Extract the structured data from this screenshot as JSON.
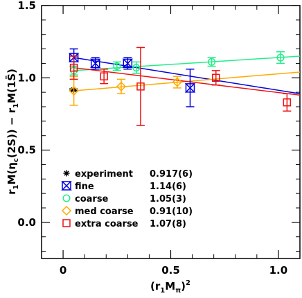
{
  "chart_data": {
    "type": "scatter",
    "xlabel": "(r1Mπ)²",
    "ylabel": "r1M(ηc(2S)) − r1M(1S̄)",
    "xlim": [
      -0.1,
      1.1
    ],
    "ylim": [
      -0.25,
      1.5
    ],
    "x_ticks": [
      "0",
      "0.5",
      "1.0"
    ],
    "y_ticks": [
      "0.0",
      "0.5",
      "1.0",
      "1.5"
    ],
    "grid": false,
    "legend_position": "bottom-left",
    "series": [
      {
        "name": "experiment",
        "value": "0.917(6)",
        "color": "#000000",
        "marker": "star",
        "points": [
          {
            "x": 0.048,
            "y": 0.917,
            "err": 0.006
          }
        ],
        "fit": null
      },
      {
        "name": "fine",
        "value": "1.14(6)",
        "color": "#0000dd",
        "marker": "bowtie",
        "points": [
          {
            "x": 0.05,
            "y": 1.14,
            "err": 0.06
          },
          {
            "x": 0.15,
            "y": 1.1,
            "err": 0.04
          },
          {
            "x": 0.3,
            "y": 1.1,
            "err": 0.04
          },
          {
            "x": 0.59,
            "y": 0.93,
            "err": 0.13
          }
        ],
        "fit": {
          "y0": 1.14,
          "x1": 1.1,
          "y1": 0.89
        }
      },
      {
        "name": "coarse",
        "value": "1.05(3)",
        "color": "#22ee88",
        "marker": "circle",
        "points": [
          {
            "x": 0.05,
            "y": 1.05,
            "err": 0.03
          },
          {
            "x": 0.25,
            "y": 1.08,
            "err": 0.03
          },
          {
            "x": 0.34,
            "y": 1.07,
            "err": 0.04
          },
          {
            "x": 0.69,
            "y": 1.11,
            "err": 0.03
          },
          {
            "x": 1.01,
            "y": 1.14,
            "err": 0.04
          }
        ],
        "fit": {
          "y0": 1.05,
          "x1": 1.1,
          "y1": 1.15
        }
      },
      {
        "name": "med coarse",
        "value": "0.91(10)",
        "color": "#ffaa00",
        "marker": "diamond",
        "points": [
          {
            "x": 0.05,
            "y": 0.91,
            "err": 0.1
          },
          {
            "x": 0.27,
            "y": 0.94,
            "err": 0.05
          },
          {
            "x": 0.53,
            "y": 0.97,
            "err": 0.04
          }
        ],
        "fit": {
          "y0": 0.91,
          "x1": 1.1,
          "y1": 1.04
        }
      },
      {
        "name": "extra coarse",
        "value": "1.07(8)",
        "color": "#ee1111",
        "marker": "square",
        "points": [
          {
            "x": 0.05,
            "y": 1.07,
            "err": 0.08
          },
          {
            "x": 0.19,
            "y": 1.01,
            "err": 0.05
          },
          {
            "x": 0.36,
            "y": 0.94,
            "err": 0.27
          },
          {
            "x": 0.71,
            "y": 1.0,
            "err": 0.05
          },
          {
            "x": 1.04,
            "y": 0.83,
            "err": 0.06
          }
        ],
        "fit": {
          "y0": 1.07,
          "x1": 1.1,
          "y1": 0.88
        }
      }
    ]
  }
}
